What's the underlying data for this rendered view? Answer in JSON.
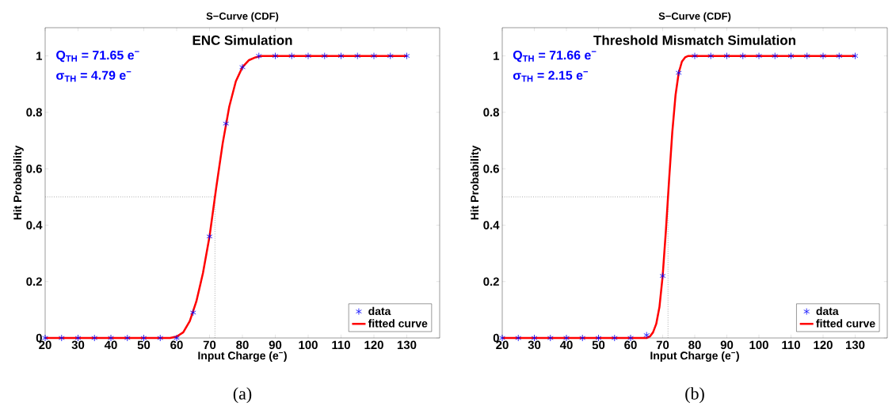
{
  "chart_data": [
    {
      "type": "line",
      "title": "S−Curve (CDF)",
      "subtitle": "ENC Simulation",
      "xlabel": "Input Charge (e$^{−}$)",
      "ylabel": "Hit Probability",
      "xlim": [
        20,
        140
      ],
      "ylim": [
        0,
        1.1
      ],
      "xticks": [
        20,
        30,
        40,
        50,
        60,
        70,
        80,
        90,
        100,
        110,
        120,
        130
      ],
      "yticks": [
        0,
        0.2,
        0.4,
        0.6,
        0.8,
        1
      ],
      "legend": "bottom right",
      "series": [
        {
          "name": "data",
          "type": "scatter",
          "marker": "cross",
          "color": "#0000ff",
          "x": [
            20,
            25,
            30,
            35,
            40,
            45,
            50,
            55,
            60,
            65,
            70,
            75,
            80,
            85,
            90,
            95,
            100,
            105,
            110,
            115,
            120,
            125,
            130
          ],
          "values": [
            0,
            0,
            0,
            0,
            0,
            0,
            0,
            0,
            0,
            0.09,
            0.36,
            0.76,
            0.96,
            1,
            1,
            1,
            1,
            1,
            1,
            1,
            1,
            1,
            1
          ]
        },
        {
          "name": "fitted curve",
          "color": "#ff0000",
          "x": [
            20,
            58,
            60,
            62,
            64,
            66,
            68,
            70,
            72,
            74,
            76,
            78,
            80,
            82,
            84,
            86,
            130
          ],
          "values": [
            0,
            0,
            0.005,
            0.02,
            0.06,
            0.13,
            0.23,
            0.36,
            0.53,
            0.69,
            0.82,
            0.91,
            0.96,
            0.985,
            0.995,
            1,
            1
          ]
        }
      ],
      "ref_lines": [
        {
          "axis": "y",
          "value": 0.5,
          "color": "#808080",
          "line_style": "dotted"
        },
        {
          "axis": "x",
          "value": 71.65,
          "color": "#808080",
          "line_style": "dotted"
        }
      ],
      "annotations": [
        "Q$_{TH}$ = 71.65 e$^{−}$",
        "σ$_{TH}$ = 4.79 e$^{−}$",
        "(a)"
      ]
    },
    {
      "type": "line",
      "title": "S−Curve (CDF)",
      "subtitle": "Threshold Mismatch Simulation",
      "xlabel": "Input Charge (e$^{−}$)",
      "ylabel": "Hit Probability",
      "xlim": [
        20,
        140
      ],
      "ylim": [
        0,
        1.1
      ],
      "xticks": [
        20,
        30,
        40,
        50,
        60,
        70,
        80,
        90,
        100,
        110,
        120,
        130
      ],
      "yticks": [
        0,
        0.2,
        0.4,
        0.6,
        0.8,
        1
      ],
      "legend": "bottom right",
      "series": [
        {
          "name": "data",
          "type": "scatter",
          "marker": "cross",
          "color": "#0000ff",
          "x": [
            20,
            25,
            30,
            35,
            40,
            45,
            50,
            55,
            60,
            65,
            70,
            75,
            80,
            85,
            90,
            95,
            100,
            105,
            110,
            115,
            120,
            125,
            130
          ],
          "values": [
            0,
            0,
            0,
            0,
            0,
            0,
            0,
            0,
            0,
            0.01,
            0.22,
            0.94,
            1,
            1,
            1,
            1,
            1,
            1,
            1,
            1,
            1,
            1,
            1
          ]
        },
        {
          "name": "fitted curve",
          "color": "#ff0000",
          "x": [
            20,
            65,
            66,
            67,
            68,
            69,
            70,
            71,
            72,
            73,
            74,
            75,
            76,
            77,
            78,
            130
          ],
          "values": [
            0,
            0,
            0.005,
            0.02,
            0.05,
            0.11,
            0.22,
            0.38,
            0.56,
            0.73,
            0.86,
            0.94,
            0.98,
            0.995,
            1,
            1
          ]
        }
      ],
      "ref_lines": [
        {
          "axis": "y",
          "value": 0.5,
          "color": "#808080",
          "line_style": "dotted"
        },
        {
          "axis": "x",
          "value": 71.66,
          "color": "#808080",
          "line_style": "dotted"
        }
      ],
      "annotations": [
        "Q$_{TH}$ = 71.66 e$^{−}$",
        "σ$_{TH}$ = 2.15 e$^{−}$",
        "(b)"
      ]
    }
  ]
}
